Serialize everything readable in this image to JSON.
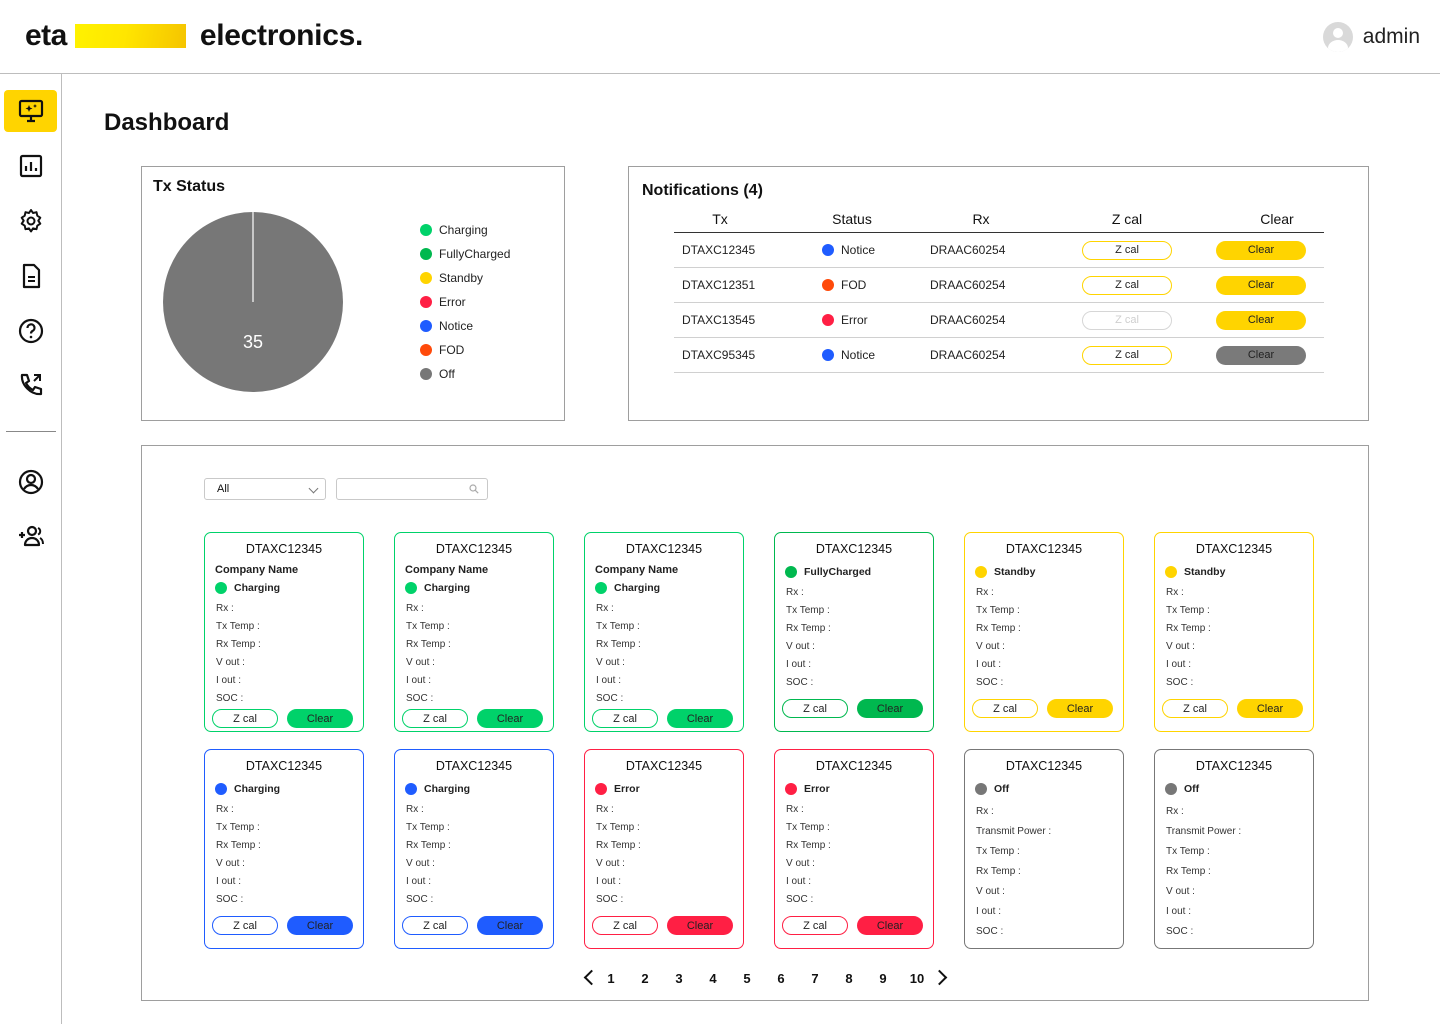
{
  "header": {
    "logo_left": "eta",
    "logo_right": "electronics.",
    "user_name": "admin"
  },
  "sidebar": {
    "items": [
      {
        "icon": "monitor-sparkle-icon",
        "active": true
      },
      {
        "icon": "bar-chart-icon",
        "active": false
      },
      {
        "icon": "gear-icon",
        "active": false
      },
      {
        "icon": "document-icon",
        "active": false
      },
      {
        "icon": "help-circle-icon",
        "active": false
      },
      {
        "icon": "phone-icon",
        "active": false
      },
      {
        "icon": "user-circle-icon",
        "active": false
      },
      {
        "icon": "add-user-icon",
        "active": false
      }
    ]
  },
  "page_title": "Dashboard",
  "tx_status": {
    "title": "Tx Status",
    "total_label": "35",
    "legend": [
      {
        "label": "Charging",
        "color": "#00d26a"
      },
      {
        "label": "FullyCharged",
        "color": "#00b84f"
      },
      {
        "label": "Standby",
        "color": "#ffd400"
      },
      {
        "label": "Error",
        "color": "#ff1f44"
      },
      {
        "label": "Notice",
        "color": "#1f5cff"
      },
      {
        "label": "FOD",
        "color": "#ff4a0a"
      },
      {
        "label": "Off",
        "color": "#777777"
      }
    ]
  },
  "notifications": {
    "title": "Notifications (4)",
    "columns": [
      "Tx",
      "Status",
      "Rx",
      "Z cal",
      "Clear"
    ],
    "rows": [
      {
        "tx": "DTAXC12345",
        "status": "Notice",
        "status_color": "#1f5cff",
        "rx": "DRAAC60254",
        "zcal": "Z cal",
        "zcal_enabled": true,
        "clear": "Clear",
        "clear_enabled": true
      },
      {
        "tx": "DTAXC12351",
        "status": "FOD",
        "status_color": "#ff4a0a",
        "rx": "DRAAC60254",
        "zcal": "Z cal",
        "zcal_enabled": true,
        "clear": "Clear",
        "clear_enabled": true
      },
      {
        "tx": "DTAXC13545",
        "status": "Error",
        "status_color": "#ff1f44",
        "rx": "DRAAC60254",
        "zcal": "Z cal",
        "zcal_enabled": false,
        "clear": "Clear",
        "clear_enabled": true
      },
      {
        "tx": "DTAXC95345",
        "status": "Notice",
        "status_color": "#1f5cff",
        "rx": "DRAAC60254",
        "zcal": "Z cal",
        "zcal_enabled": true,
        "clear": "Clear",
        "clear_enabled": false
      }
    ]
  },
  "device_grid": {
    "filter_value": "All",
    "search_placeholder": "",
    "zcal_label": "Z cal",
    "clear_label": "Clear",
    "cards": [
      {
        "id": "DTAXC12345",
        "company": "Company Name",
        "status": "Charging",
        "color": "#00d26a",
        "fields": [
          "Rx :",
          "Tx Temp :",
          "Rx Temp :",
          "V out :",
          "I out :",
          "SOC :"
        ]
      },
      {
        "id": "DTAXC12345",
        "company": "Company Name",
        "status": "Charging",
        "color": "#00d26a",
        "fields": [
          "Rx :",
          "Tx Temp :",
          "Rx Temp :",
          "V out :",
          "I out :",
          "SOC :"
        ]
      },
      {
        "id": "DTAXC12345",
        "company": "Company Name",
        "status": "Charging",
        "color": "#00d26a",
        "fields": [
          "Rx :",
          "Tx Temp :",
          "Rx Temp :",
          "V out :",
          "I out :",
          "SOC :"
        ]
      },
      {
        "id": "DTAXC12345",
        "company": "",
        "status": "FullyCharged",
        "color": "#00b84f",
        "fields": [
          "Rx :",
          "Tx Temp :",
          "Rx Temp :",
          "V out :",
          "I out :",
          "SOC :"
        ]
      },
      {
        "id": "DTAXC12345",
        "company": "",
        "status": "Standby",
        "color": "#ffd400",
        "fields": [
          "Rx :",
          "Tx Temp :",
          "Rx Temp :",
          "V out :",
          "I out :",
          "SOC :"
        ]
      },
      {
        "id": "DTAXC12345",
        "company": "",
        "status": "Standby",
        "color": "#ffd400",
        "fields": [
          "Rx :",
          "Tx Temp :",
          "Rx Temp :",
          "V out :",
          "I out :",
          "SOC :"
        ]
      },
      {
        "id": "DTAXC12345",
        "company": "",
        "status": "Charging",
        "color": "#1f5cff",
        "fields": [
          "Rx :",
          "Tx Temp :",
          "Rx Temp :",
          "V out :",
          "I out :",
          "SOC :"
        ]
      },
      {
        "id": "DTAXC12345",
        "company": "",
        "status": "Charging",
        "color": "#1f5cff",
        "fields": [
          "Rx :",
          "Tx Temp :",
          "Rx Temp :",
          "V out :",
          "I out :",
          "SOC :"
        ]
      },
      {
        "id": "DTAXC12345",
        "company": "",
        "status": "Error",
        "color": "#ff1f44",
        "fields": [
          "Rx :",
          "Tx Temp :",
          "Rx Temp :",
          "V out :",
          "I out :",
          "SOC :"
        ]
      },
      {
        "id": "DTAXC12345",
        "company": "",
        "status": "Error",
        "color": "#ff1f44",
        "fields": [
          "Rx :",
          "Tx Temp :",
          "Rx Temp :",
          "V out :",
          "I out :",
          "SOC :"
        ]
      },
      {
        "id": "DTAXC12345",
        "company": "",
        "status": "Off",
        "color": "#777777",
        "fields": [
          "Rx :",
          "Transmit Power :",
          "Tx Temp :",
          "Rx Temp :",
          "V out :",
          "I out :",
          "SOC :"
        ]
      },
      {
        "id": "DTAXC12345",
        "company": "",
        "status": "Off",
        "color": "#777777",
        "fields": [
          "Rx :",
          "Transmit Power :",
          "Tx Temp :",
          "Rx Temp :",
          "V out :",
          "I out :",
          "SOC :"
        ]
      }
    ]
  },
  "pagination": {
    "pages": [
      "1",
      "2",
      "3",
      "4",
      "5",
      "6",
      "7",
      "8",
      "9",
      "10"
    ]
  },
  "colors": {
    "accent": "#ffd400",
    "pie_fill": "#777777",
    "border": "#9e9e9e"
  }
}
